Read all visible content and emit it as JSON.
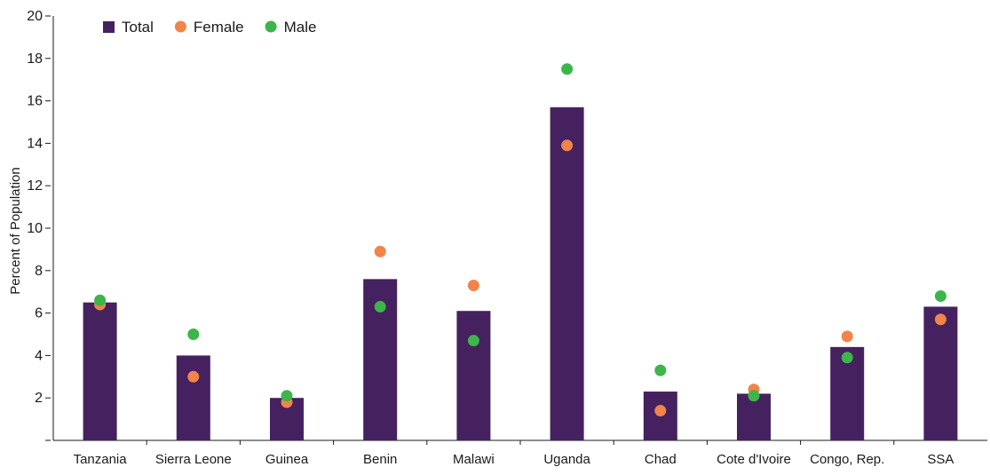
{
  "chart_data": {
    "type": "bar",
    "title": "",
    "xlabel": "",
    "ylabel": "Percent of Population",
    "ylim": [
      0,
      20
    ],
    "yticks": [
      2,
      4,
      6,
      8,
      10,
      12,
      14,
      16,
      18,
      20
    ],
    "grid": false,
    "legend_position": "top-left",
    "categories": [
      "Tanzania",
      "Sierra Leone",
      "Guinea",
      "Benin",
      "Malawi",
      "Uganda",
      "Chad",
      "Cote d'Ivoire",
      "Congo, Rep.",
      "SSA"
    ],
    "series": [
      {
        "name": "Total",
        "kind": "bar",
        "color": "#45215f",
        "values": [
          6.5,
          4.0,
          2.0,
          7.6,
          6.1,
          15.7,
          2.3,
          2.2,
          4.4,
          6.3
        ]
      },
      {
        "name": "Female",
        "kind": "point",
        "color": "#f2844a",
        "values": [
          6.4,
          3.0,
          1.8,
          8.9,
          7.3,
          13.9,
          1.4,
          2.4,
          4.9,
          5.7
        ]
      },
      {
        "name": "Male",
        "kind": "point",
        "color": "#3cb54a",
        "values": [
          6.6,
          5.0,
          2.1,
          6.3,
          4.7,
          17.5,
          3.3,
          2.1,
          3.9,
          6.8
        ]
      }
    ]
  }
}
